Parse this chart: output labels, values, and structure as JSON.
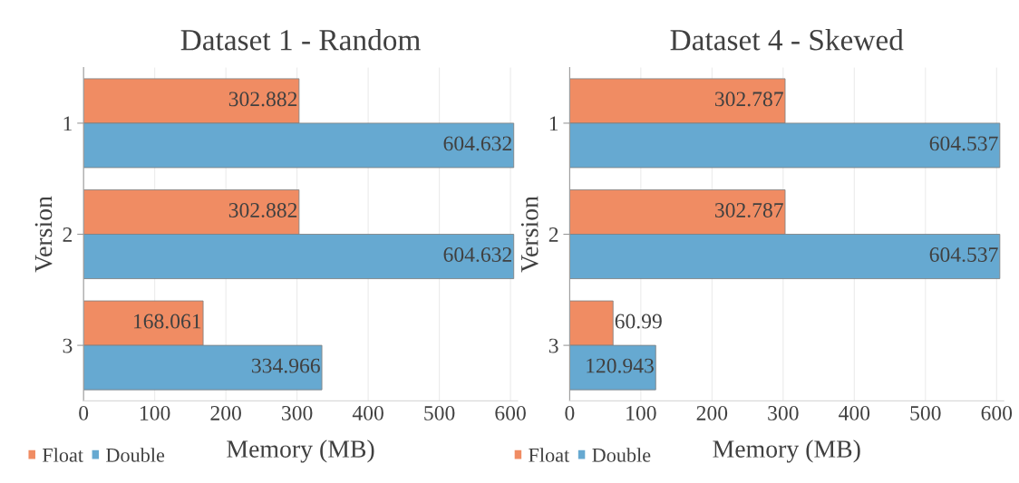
{
  "chart_data": [
    {
      "type": "bar",
      "orientation": "horizontal",
      "title": "Dataset 1 - Random",
      "xlabel": "Memory (MB)",
      "ylabel": "Version",
      "categories": [
        "1",
        "2",
        "3"
      ],
      "series": [
        {
          "name": "Float",
          "color": "#f08c63",
          "values": [
            302.882,
            302.882,
            168.061
          ]
        },
        {
          "name": "Double",
          "color": "#66a9d1",
          "values": [
            604.632,
            604.632,
            334.966
          ]
        }
      ],
      "xlim": [
        0,
        610
      ],
      "xticks": [
        0,
        100,
        200,
        300,
        400,
        500,
        600
      ],
      "grid": "x",
      "legend": "bottom left",
      "data_labels": true
    },
    {
      "type": "bar",
      "orientation": "horizontal",
      "title": "Dataset 4 - Skewed",
      "xlabel": "Memory (MB)",
      "ylabel": "Version",
      "categories": [
        "1",
        "2",
        "3"
      ],
      "series": [
        {
          "name": "Float",
          "color": "#f08c63",
          "values": [
            302.787,
            302.787,
            60.99
          ]
        },
        {
          "name": "Double",
          "color": "#66a9d1",
          "values": [
            604.537,
            604.537,
            120.943
          ]
        }
      ],
      "xlim": [
        0,
        610
      ],
      "xticks": [
        0,
        100,
        200,
        300,
        400,
        500,
        600
      ],
      "grid": "x",
      "legend": "bottom left",
      "data_labels": true
    }
  ]
}
